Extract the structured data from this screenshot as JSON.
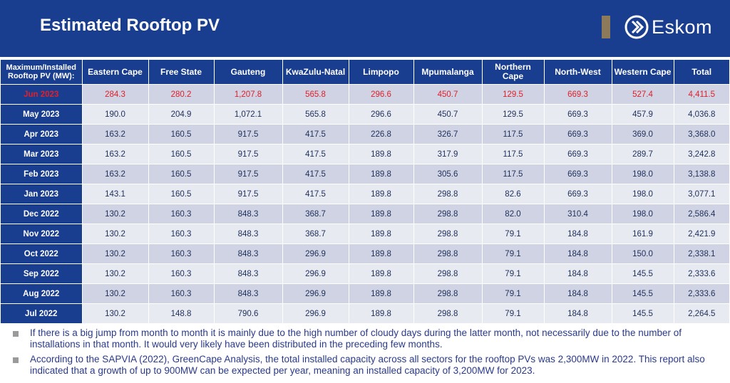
{
  "slide": {
    "title": "Estimated Rooftop PV",
    "logo_text": "Eskom",
    "colors": {
      "header_bg": "#1a3e8f",
      "highlight_text": "#e0202a",
      "body_text": "#2a3a8a",
      "row_odd": "#cfd3e3",
      "row_even": "#e8eaf2",
      "logo_accent": "#8c7a5b"
    }
  },
  "table": {
    "headers": [
      "Maximum/Installed Rooftop PV (MW):",
      "Eastern Cape",
      "Free State",
      "Gauteng",
      "KwaZulu-Natal",
      "Limpopo",
      "Mpumalanga",
      "Northern Cape",
      "North-West",
      "Western Cape",
      "Total"
    ],
    "rows": [
      {
        "month": "Jun 2023",
        "values": [
          "284.3",
          "280.2",
          "1,207.8",
          "565.8",
          "296.6",
          "450.7",
          "129.5",
          "669.3",
          "527.4",
          "4,411.5"
        ]
      },
      {
        "month": "May 2023",
        "values": [
          "190.0",
          "204.9",
          "1,072.1",
          "565.8",
          "296.6",
          "450.7",
          "129.5",
          "669.3",
          "457.9",
          "4,036.8"
        ]
      },
      {
        "month": "Apr 2023",
        "values": [
          "163.2",
          "160.5",
          "917.5",
          "417.5",
          "226.8",
          "326.7",
          "117.5",
          "669.3",
          "369.0",
          "3,368.0"
        ]
      },
      {
        "month": "Mar 2023",
        "values": [
          "163.2",
          "160.5",
          "917.5",
          "417.5",
          "189.8",
          "317.9",
          "117.5",
          "669.3",
          "289.7",
          "3,242.8"
        ]
      },
      {
        "month": "Feb 2023",
        "values": [
          "163.2",
          "160.5",
          "917.5",
          "417.5",
          "189.8",
          "305.6",
          "117.5",
          "669.3",
          "198.0",
          "3,138.8"
        ]
      },
      {
        "month": "Jan 2023",
        "values": [
          "143.1",
          "160.5",
          "917.5",
          "417.5",
          "189.8",
          "298.8",
          "82.6",
          "669.3",
          "198.0",
          "3,077.1"
        ]
      },
      {
        "month": "Dec 2022",
        "values": [
          "130.2",
          "160.3",
          "848.3",
          "368.7",
          "189.8",
          "298.8",
          "82.0",
          "310.4",
          "198.0",
          "2,586.4"
        ]
      },
      {
        "month": "Nov 2022",
        "values": [
          "130.2",
          "160.3",
          "848.3",
          "368.7",
          "189.8",
          "298.8",
          "79.1",
          "184.8",
          "161.9",
          "2,421.9"
        ]
      },
      {
        "month": "Oct 2022",
        "values": [
          "130.2",
          "160.3",
          "848.3",
          "296.9",
          "189.8",
          "298.8",
          "79.1",
          "184.8",
          "150.0",
          "2,338.1"
        ]
      },
      {
        "month": "Sep 2022",
        "values": [
          "130.2",
          "160.3",
          "848.3",
          "296.9",
          "189.8",
          "298.8",
          "79.1",
          "184.8",
          "145.5",
          "2,333.6"
        ]
      },
      {
        "month": "Aug 2022",
        "values": [
          "130.2",
          "160.3",
          "848.3",
          "296.9",
          "189.8",
          "298.8",
          "79.1",
          "184.8",
          "145.5",
          "2,333.6"
        ]
      },
      {
        "month": "Jul 2022",
        "values": [
          "130.2",
          "148.8",
          "790.6",
          "296.9",
          "189.8",
          "298.8",
          "79.1",
          "184.8",
          "145.5",
          "2,264.5"
        ]
      }
    ]
  },
  "notes": [
    "If there is a big jump from month to month it is mainly due to the high number of cloudy days during the latter month, not necessarily due to the number of installations in that month. It would very likely have been distributed in the preceding few months.",
    "According to the SAPVIA (2022), GreenCape Analysis, the total installed capacity across all sectors for the rooftop PVs was 2,300MW in 2022. This report also indicated that a growth of up to 900MW can be expected per year, meaning an installed capacity of 3,200MW for 2023."
  ]
}
